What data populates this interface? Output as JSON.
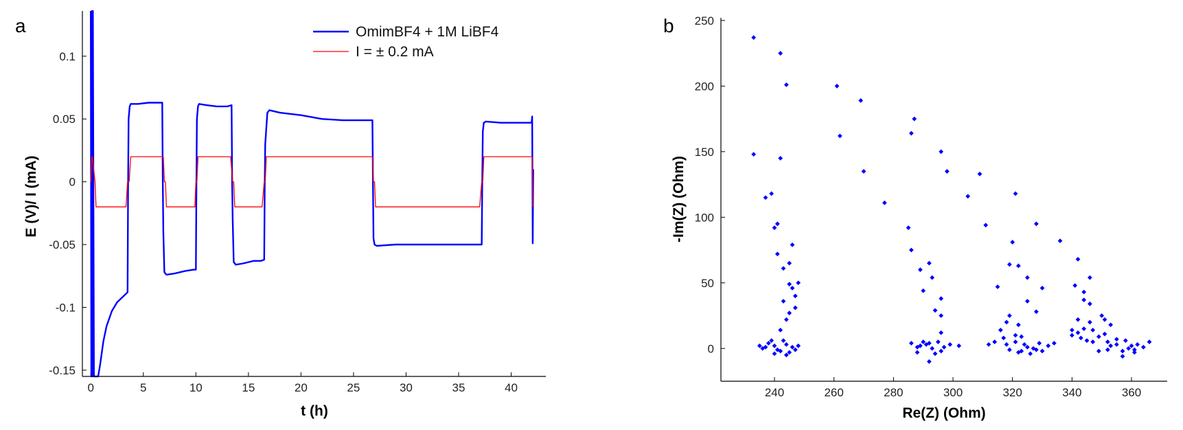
{
  "chart_data": [
    {
      "panel_label": "a",
      "type": "line",
      "xlabel": "t (h)",
      "ylabel": "E (V)/ I (mA)",
      "xlim": [
        -0.8,
        43.3
      ],
      "ylim": [
        -0.155,
        0.136
      ],
      "xticks": [
        0,
        5,
        10,
        15,
        20,
        25,
        30,
        35,
        40
      ],
      "xtick_labels": [
        "0",
        "5",
        "10",
        "15",
        "20",
        "25",
        "30",
        "35",
        "40"
      ],
      "yticks": [
        -0.15,
        -0.1,
        -0.05,
        0,
        0.05,
        0.1
      ],
      "ytick_labels": [
        "-0.15",
        "-0.1",
        "-0.05",
        "0",
        "0.05",
        "0.1"
      ],
      "legend_position": "top-right",
      "series": [
        {
          "name": "OmimBF4  + 1M LiBF4",
          "color": "#0000ff",
          "x": [
            0,
            0.05,
            0.1,
            0.15,
            0.2,
            0.3,
            0.4,
            0.5,
            0.55,
            0.7,
            0.9,
            1.2,
            1.5,
            2.0,
            2.5,
            3.0,
            3.5,
            3.55,
            3.6,
            3.7,
            3.8,
            4.5,
            5.5,
            6.5,
            6.8,
            6.85,
            6.9,
            7.0,
            7.2,
            8.0,
            9.0,
            9.8,
            10.0,
            10.05,
            10.1,
            10.2,
            10.3,
            11.0,
            12.0,
            13.0,
            13.4,
            13.45,
            13.5,
            13.6,
            13.8,
            14.5,
            15.5,
            16.2,
            16.5,
            16.55,
            16.6,
            16.8,
            17.0,
            18.0,
            20.0,
            22.0,
            24.0,
            26.0,
            26.8,
            26.85,
            26.9,
            27.0,
            27.2,
            29.0,
            31.0,
            33.0,
            35.0,
            37.0,
            37.2,
            37.25,
            37.3,
            37.4,
            37.6,
            39.0,
            41.0,
            41.95,
            42.0,
            42.05,
            42.1
          ],
          "y": [
            0.136,
            -0.155,
            0.136,
            -0.155,
            0.136,
            -0.155,
            -0.155,
            -0.155,
            -0.155,
            -0.155,
            -0.145,
            -0.127,
            -0.115,
            -0.103,
            -0.096,
            -0.092,
            -0.088,
            0.0,
            0.05,
            0.06,
            0.062,
            0.062,
            0.063,
            0.063,
            0.063,
            0.0,
            -0.04,
            -0.072,
            -0.074,
            -0.073,
            -0.071,
            -0.07,
            -0.07,
            0.0,
            0.05,
            0.06,
            0.062,
            0.061,
            0.06,
            0.06,
            0.061,
            0.0,
            -0.03,
            -0.064,
            -0.066,
            -0.065,
            -0.063,
            -0.063,
            -0.062,
            0.0,
            0.03,
            0.055,
            0.057,
            0.055,
            0.053,
            0.05,
            0.049,
            0.049,
            0.049,
            0.0,
            -0.045,
            -0.05,
            -0.051,
            -0.05,
            -0.05,
            -0.05,
            -0.05,
            -0.05,
            -0.05,
            0.0,
            0.04,
            0.047,
            0.048,
            0.047,
            0.047,
            0.047,
            0.052,
            -0.049,
            0.01
          ]
        },
        {
          "name": "I = ± 0.2 mA",
          "color": "#ff0000",
          "x": [
            0,
            0.1,
            0.15,
            0.4,
            0.5,
            3.35,
            3.5,
            3.65,
            3.8,
            6.9,
            7.0,
            7.1,
            7.2,
            9.9,
            10.0,
            10.1,
            10.2,
            13.3,
            13.5,
            13.6,
            13.7,
            16.3,
            16.5,
            16.6,
            16.7,
            26.8,
            26.9,
            27.0,
            27.1,
            37.0,
            37.2,
            37.3,
            37.4,
            42.0,
            42.05
          ],
          "y": [
            0.0,
            0.02,
            0.02,
            0.0,
            -0.02,
            -0.02,
            0.0,
            0.0,
            0.02,
            0.02,
            0.0,
            0.0,
            -0.02,
            -0.02,
            0.0,
            0.0,
            0.02,
            0.02,
            0.0,
            0.0,
            -0.02,
            -0.02,
            0.0,
            0.0,
            0.02,
            0.02,
            0.0,
            0.0,
            -0.02,
            -0.02,
            0.0,
            0.0,
            0.02,
            0.02,
            -0.02
          ]
        }
      ]
    },
    {
      "panel_label": "b",
      "type": "scatter",
      "xlabel": "Re(Z) (Ohm)",
      "ylabel": "-Im(Z) (Ohm)",
      "xlim": [
        222,
        372
      ],
      "ylim": [
        -25,
        252
      ],
      "xticks": [
        240,
        260,
        280,
        300,
        320,
        340,
        360
      ],
      "xtick_labels": [
        "240",
        "260",
        "280",
        "300",
        "320",
        "340",
        "360"
      ],
      "yticks": [
        0,
        50,
        100,
        150,
        200,
        250
      ],
      "ytick_labels": [
        "0",
        "50",
        "100",
        "150",
        "200",
        "250"
      ],
      "series": [
        {
          "color": "#0000ff",
          "points": [
            [
              233,
              237
            ],
            [
              242,
              225
            ],
            [
              244,
              201
            ],
            [
              261,
              200
            ],
            [
              269,
              189
            ],
            [
              262,
              162
            ],
            [
              287,
              175
            ],
            [
              286,
              164
            ],
            [
              296,
              150
            ],
            [
              242,
              145
            ],
            [
              233,
              148
            ],
            [
              298,
              135
            ],
            [
              270,
              135
            ],
            [
              309,
              133
            ],
            [
              321,
              118
            ],
            [
              305,
              116
            ],
            [
              237,
              115
            ],
            [
              239,
              118
            ],
            [
              277,
              111
            ],
            [
              311,
              94
            ],
            [
              328,
              95
            ],
            [
              285,
              92
            ],
            [
              240,
              92
            ],
            [
              241,
              95
            ],
            [
              336,
              82
            ],
            [
              320,
              81
            ],
            [
              286,
              75
            ],
            [
              246,
              79
            ],
            [
              342,
              68
            ],
            [
              241,
              72
            ],
            [
              245,
              65
            ],
            [
              292,
              65
            ],
            [
              319,
              64
            ],
            [
              243,
              61
            ],
            [
              322,
              63
            ],
            [
              289,
              60
            ],
            [
              293,
              54
            ],
            [
              325,
              54
            ],
            [
              248,
              50
            ],
            [
              346,
              54
            ],
            [
              245,
              49
            ],
            [
              315,
              47
            ],
            [
              341,
              48
            ],
            [
              290,
              44
            ],
            [
              246,
              46
            ],
            [
              330,
              46
            ],
            [
              344,
              43
            ],
            [
              247,
              40
            ],
            [
              296,
              38
            ],
            [
              325,
              36
            ],
            [
              243,
              36
            ],
            [
              344,
              37
            ],
            [
              247,
              31
            ],
            [
              346,
              34
            ],
            [
              294,
              29
            ],
            [
              328,
              28
            ],
            [
              245,
              27
            ],
            [
              350,
              25
            ],
            [
              296,
              25
            ],
            [
              319,
              25
            ],
            [
              342,
              22
            ],
            [
              351,
              22
            ],
            [
              346,
              20
            ],
            [
              244,
              22
            ],
            [
              318,
              20
            ],
            [
              322,
              18
            ],
            [
              353,
              18
            ],
            [
              316,
              14
            ],
            [
              340,
              14
            ],
            [
              347,
              14
            ],
            [
              296,
              12
            ],
            [
              342,
              12
            ],
            [
              242,
              14
            ],
            [
              321,
              10
            ],
            [
              349,
              9
            ],
            [
              351,
              11
            ],
            [
              343,
              8
            ],
            [
              290,
              5
            ],
            [
              355,
              7
            ],
            [
              358,
              6
            ],
            [
              317,
              8
            ],
            [
              323,
              9
            ],
            [
              347,
              5
            ],
            [
              292,
              4
            ],
            [
              334,
              4
            ],
            [
              321,
              5
            ],
            [
              353,
              2
            ],
            [
              244,
              3
            ],
            [
              360,
              2
            ],
            [
              238,
              4
            ],
            [
              248,
              2
            ],
            [
              299,
              3
            ],
            [
              329,
              4
            ],
            [
              362,
              3
            ],
            [
              366,
              5
            ],
            [
              345,
              6
            ],
            [
              286,
              4
            ],
            [
              325,
              1
            ],
            [
              289,
              2
            ],
            [
              352,
              -1
            ],
            [
              312,
              3
            ],
            [
              357,
              -2
            ],
            [
              319,
              -1
            ],
            [
              241,
              -1
            ],
            [
              296,
              -2
            ],
            [
              330,
              -2
            ],
            [
              361,
              -3
            ],
            [
              236,
              0
            ],
            [
              245,
              -3
            ],
            [
              293,
              0
            ],
            [
              240,
              -4
            ],
            [
              288,
              -3
            ],
            [
              357,
              -6
            ],
            [
              326,
              -4
            ],
            [
              292,
              -10
            ],
            [
              246,
              1
            ],
            [
              235,
              2
            ],
            [
              302,
              2
            ],
            [
              314,
              5
            ],
            [
              327,
              0
            ],
            [
              355,
              3
            ],
            [
              359,
              0
            ],
            [
              361,
              -1
            ],
            [
              364,
              1
            ],
            [
              340,
              10
            ],
            [
              344,
              15
            ],
            [
              352,
              5
            ],
            [
              349,
              -2
            ],
            [
              243,
              6
            ],
            [
              240,
              2
            ],
            [
              239,
              6
            ],
            [
              237,
              1
            ],
            [
              244,
              -5
            ],
            [
              247,
              -1
            ],
            [
              242,
              -2
            ],
            [
              288,
              1
            ],
            [
              291,
              3
            ],
            [
              295,
              5
            ],
            [
              297,
              1
            ],
            [
              294,
              -4
            ],
            [
              322,
              -3
            ],
            [
              324,
              3
            ],
            [
              328,
              -1
            ],
            [
              318,
              3
            ],
            [
              332,
              2
            ],
            [
              323,
              -2
            ]
          ]
        }
      ]
    }
  ]
}
